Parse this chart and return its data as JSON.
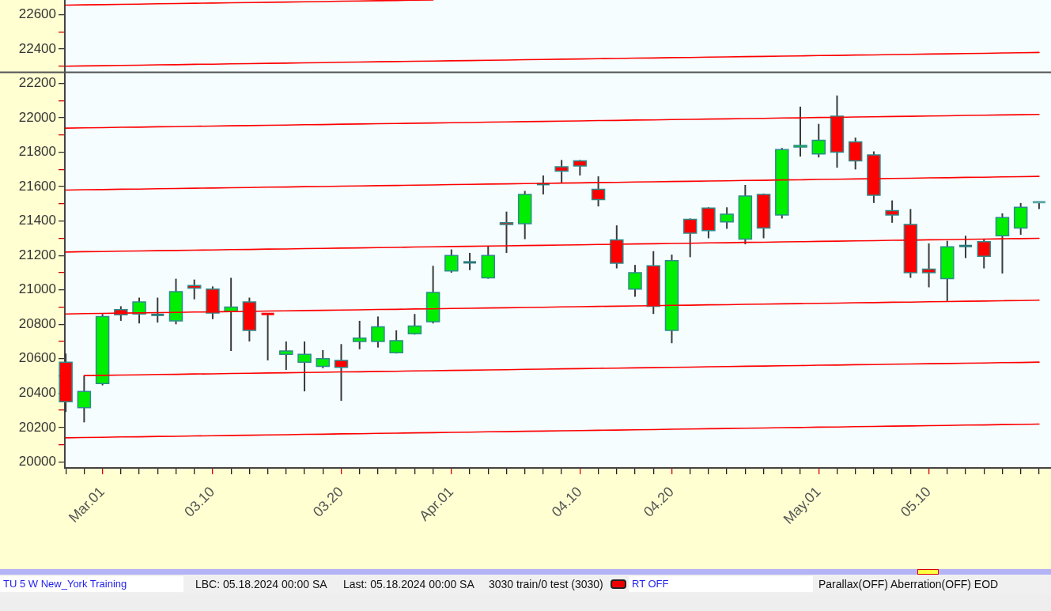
{
  "chart_data": {
    "type": "candlestick",
    "categories": [
      null,
      null,
      "Mar.01",
      null,
      null,
      null,
      null,
      null,
      "03.10",
      null,
      null,
      null,
      null,
      null,
      null,
      "03.20",
      null,
      null,
      null,
      null,
      null,
      "Apr.01",
      null,
      null,
      null,
      null,
      null,
      null,
      "04.10",
      null,
      null,
      null,
      null,
      "04.20",
      null,
      null,
      null,
      null,
      null,
      null,
      null,
      "May.01",
      null,
      null,
      null,
      null,
      null,
      "05.10",
      null,
      null,
      null,
      null,
      null,
      null
    ],
    "ohlc": [
      [
        20580,
        20630,
        20290,
        20350
      ],
      [
        20315,
        20500,
        20230,
        20410
      ],
      [
        20455,
        20860,
        20445,
        20845
      ],
      [
        20885,
        20905,
        20820,
        20855
      ],
      [
        20860,
        20955,
        20805,
        20930
      ],
      [
        20855,
        20955,
        20810,
        20855
      ],
      [
        20820,
        21065,
        20800,
        20990
      ],
      [
        21025,
        21060,
        20945,
        21010
      ],
      [
        21005,
        21020,
        20830,
        20865
      ],
      [
        20875,
        21070,
        20645,
        20900
      ],
      [
        20930,
        20955,
        20700,
        20765
      ],
      [
        20860,
        20860,
        20590,
        20860
      ],
      [
        20625,
        20700,
        20535,
        20645
      ],
      [
        20580,
        20700,
        20410,
        20625
      ],
      [
        20555,
        20650,
        20545,
        20600
      ],
      [
        20590,
        20685,
        20355,
        20550
      ],
      [
        20700,
        20820,
        20655,
        20720
      ],
      [
        20700,
        20845,
        20665,
        20785
      ],
      [
        20635,
        20765,
        20630,
        20705
      ],
      [
        20745,
        20860,
        20740,
        20790
      ],
      [
        20815,
        21140,
        20805,
        20985
      ],
      [
        21110,
        21235,
        21100,
        21200
      ],
      [
        21160,
        21215,
        21115,
        21160
      ],
      [
        21070,
        21255,
        21065,
        21200
      ],
      [
        21390,
        21455,
        21215,
        21380
      ],
      [
        21385,
        21575,
        21295,
        21555
      ],
      [
        21615,
        21665,
        21555,
        21615
      ],
      [
        21715,
        21755,
        21620,
        21690
      ],
      [
        21750,
        21755,
        21665,
        21720
      ],
      [
        21585,
        21660,
        21485,
        21525
      ],
      [
        21290,
        21375,
        21125,
        21155
      ],
      [
        21005,
        21145,
        20960,
        21100
      ],
      [
        21140,
        21225,
        20860,
        20905
      ],
      [
        20765,
        21205,
        20690,
        21170
      ],
      [
        21410,
        21415,
        21190,
        21330
      ],
      [
        21475,
        21480,
        21300,
        21345
      ],
      [
        21395,
        21480,
        21355,
        21440
      ],
      [
        21295,
        21610,
        21265,
        21545
      ],
      [
        21555,
        21560,
        21300,
        21360
      ],
      [
        21435,
        21825,
        21415,
        21815
      ],
      [
        21830,
        22065,
        21775,
        21840
      ],
      [
        21790,
        21965,
        21770,
        21870
      ],
      [
        22010,
        22130,
        21710,
        21800
      ],
      [
        21860,
        21885,
        21700,
        21750
      ],
      [
        21785,
        21805,
        21505,
        21550
      ],
      [
        21460,
        21520,
        21390,
        21435
      ],
      [
        21380,
        21470,
        21070,
        21100
      ],
      [
        21120,
        21270,
        21015,
        21100
      ],
      [
        21065,
        21285,
        20935,
        21250
      ],
      [
        21255,
        21315,
        21185,
        21255
      ],
      [
        21280,
        21295,
        21125,
        21195
      ],
      [
        21315,
        21445,
        21095,
        21420
      ],
      [
        21360,
        21505,
        21320,
        21480
      ],
      [
        21510,
        21510,
        21470,
        21510
      ]
    ],
    "colors": [
      "#ff0000",
      "#00ee00",
      "#00ee00",
      "#ff0000",
      "#00ee00",
      "#2a7a7a",
      "#00ee00",
      "#ff0000",
      "#ff0000",
      "#00ee00",
      "#ff0000",
      "#ff0000",
      "#00ee00",
      "#00ee00",
      "#00ee00",
      "#ff0000",
      "#00ee00",
      "#00ee00",
      "#00ee00",
      "#00ee00",
      "#00ee00",
      "#00ee00",
      "#2a7a7a",
      "#00ee00",
      "#ff0000",
      "#00ee00",
      "#2a7a7a",
      "#ff0000",
      "#ff0000",
      "#ff0000",
      "#ff0000",
      "#00ee00",
      "#ff0000",
      "#00ee00",
      "#ff0000",
      "#ff0000",
      "#00ee00",
      "#00ee00",
      "#ff0000",
      "#00ee00",
      "#00ee00",
      "#00ee00",
      "#ff0000",
      "#ff0000",
      "#ff0000",
      "#ff0000",
      "#ff0000",
      "#ff0000",
      "#00ee00",
      "#2a7a7a",
      "#ff0000",
      "#00ee00",
      "#00ee00",
      "#5fa8a8"
    ],
    "series": [
      {
        "type": "line",
        "color": "#ff0000",
        "values": [
          22655,
          22657,
          22658,
          22660,
          22661,
          22663,
          22664,
          22666,
          22667,
          22669,
          22670,
          22672,
          22673,
          22675,
          22676,
          22678,
          22679,
          22681,
          22682,
          22684,
          22685,
          null,
          null,
          null,
          null,
          null,
          null,
          null,
          null,
          null,
          null,
          null,
          null,
          null,
          null,
          null,
          null,
          null,
          null,
          null,
          null,
          null,
          null,
          null,
          null,
          null,
          null,
          null,
          null,
          null,
          null,
          null,
          null,
          null
        ]
      },
      {
        "type": "line",
        "color": "#ff0000",
        "values": [
          22300,
          22302,
          22303,
          22305,
          22306,
          22308,
          22309,
          22311,
          22312,
          22314,
          22315,
          22317,
          22318,
          22320,
          22321,
          22323,
          22324,
          22326,
          22327,
          22329,
          22330,
          22332,
          22333,
          22335,
          22336,
          22338,
          22339,
          22341,
          22342,
          22344,
          22345,
          22347,
          22348,
          22350,
          22351,
          22353,
          22354,
          22356,
          22357,
          22359,
          22360,
          22362,
          22363,
          22365,
          22366,
          22368,
          22369,
          22371,
          22372,
          22374,
          22375,
          22377,
          22378,
          22380
        ]
      },
      {
        "type": "line",
        "color": "#ff0000",
        "values": [
          21940,
          21942,
          21943,
          21945,
          21946,
          21948,
          21949,
          21951,
          21952,
          21954,
          21955,
          21957,
          21958,
          21960,
          21961,
          21963,
          21964,
          21966,
          21967,
          21969,
          21970,
          21972,
          21973,
          21975,
          21976,
          21978,
          21979,
          21981,
          21982,
          21984,
          21985,
          21987,
          21988,
          21990,
          21991,
          21993,
          21994,
          21996,
          21997,
          21999,
          22000,
          22002,
          22003,
          22005,
          22006,
          22008,
          22009,
          22011,
          22012,
          22014,
          22015,
          22017,
          22018,
          22020
        ]
      },
      {
        "type": "line",
        "color": "#ff0000",
        "values": [
          21580,
          21582,
          21583,
          21585,
          21586,
          21588,
          21589,
          21591,
          21592,
          21594,
          21595,
          21597,
          21598,
          21600,
          21601,
          21603,
          21604,
          21606,
          21607,
          21609,
          21610,
          21612,
          21613,
          21615,
          21616,
          21618,
          21619,
          21621,
          21622,
          21624,
          21625,
          21627,
          21628,
          21630,
          21631,
          21633,
          21634,
          21636,
          21637,
          21639,
          21640,
          21642,
          21643,
          21645,
          21646,
          21648,
          21649,
          21651,
          21652,
          21654,
          21655,
          21657,
          21658,
          21660
        ]
      },
      {
        "type": "line",
        "color": "#ff0000",
        "values": [
          21220,
          21222,
          21223,
          21225,
          21226,
          21228,
          21229,
          21231,
          21232,
          21234,
          21235,
          21237,
          21238,
          21240,
          21241,
          21243,
          21244,
          21246,
          21247,
          21249,
          21250,
          21252,
          21253,
          21255,
          21256,
          21258,
          21259,
          21261,
          21262,
          21264,
          21265,
          21267,
          21268,
          21270,
          21271,
          21273,
          21274,
          21276,
          21277,
          21279,
          21280,
          21282,
          21283,
          21285,
          21286,
          21288,
          21289,
          21291,
          21292,
          21294,
          21295,
          21297,
          21298,
          21300
        ]
      },
      {
        "type": "line",
        "color": "#ff0000",
        "values": [
          20860,
          20862,
          20863,
          20865,
          20866,
          20868,
          20869,
          20871,
          20872,
          20874,
          20875,
          20877,
          20878,
          20880,
          20881,
          20883,
          20884,
          20886,
          20887,
          20889,
          20890,
          20892,
          20893,
          20895,
          20896,
          20898,
          20899,
          20901,
          20902,
          20904,
          20905,
          20907,
          20908,
          20910,
          20911,
          20913,
          20914,
          20916,
          20917,
          20919,
          20920,
          20922,
          20923,
          20925,
          20926,
          20928,
          20929,
          20931,
          20932,
          20934,
          20935,
          20937,
          20938,
          20940
        ]
      },
      {
        "type": "line",
        "color": "#ff0000",
        "values": [
          null,
          20502,
          20503,
          20505,
          20506,
          20508,
          20509,
          20511,
          20512,
          20514,
          20515,
          20517,
          20518,
          20520,
          20521,
          20523,
          20524,
          20526,
          20527,
          20529,
          20530,
          20532,
          20533,
          20535,
          20536,
          20538,
          20539,
          20541,
          20542,
          20544,
          20545,
          20547,
          20548,
          20550,
          20551,
          20553,
          20554,
          20556,
          20557,
          20559,
          20560,
          20562,
          20563,
          20565,
          20566,
          20568,
          20569,
          20571,
          20572,
          20574,
          20575,
          20577,
          20578,
          20580
        ]
      },
      {
        "type": "line",
        "color": "#ff0000",
        "values": [
          20140,
          20142,
          20143,
          20145,
          20146,
          20148,
          20149,
          20151,
          20152,
          20154,
          20155,
          20157,
          20158,
          20160,
          20161,
          20163,
          20164,
          20166,
          20167,
          20169,
          20170,
          20172,
          20173,
          20175,
          20176,
          20178,
          20179,
          20181,
          20182,
          20184,
          20185,
          20187,
          20188,
          20190,
          20191,
          20193,
          20194,
          20196,
          20197,
          20199,
          20200,
          20202,
          20203,
          20205,
          20206,
          20208,
          20209,
          20211,
          20212,
          20214,
          20215,
          20217,
          20218,
          20220
        ]
      }
    ],
    "ylim": [
      19965,
      22685
    ],
    "yticks": [
      20000,
      {
        "value": 20100,
        "label": null
      },
      20200,
      {
        "value": 20300,
        "label": null
      },
      20400,
      {
        "value": 20500,
        "label": null
      },
      20600,
      {
        "value": 20700,
        "label": null
      },
      20800,
      {
        "value": 20900,
        "label": null
      },
      21000,
      {
        "value": 21100,
        "label": null
      },
      21200,
      {
        "value": 21300,
        "label": null
      },
      21400,
      {
        "value": 21500,
        "label": null
      },
      21600,
      {
        "value": 21700,
        "label": null
      },
      21800,
      {
        "value": 21900,
        "label": null
      },
      22000,
      {
        "value": 22100,
        "label": null
      },
      22200,
      {
        "value": 22300,
        "label": null
      },
      22400,
      {
        "value": 22500,
        "label": null
      },
      22600
    ],
    "ref_lines": [
      {
        "axis": "y",
        "value": 22265,
        "color": "#555555"
      }
    ],
    "annotations": [
      "TU 5 W New_York Training",
      "LBC: 05.18.2024 00:00 SA",
      "Last: 05.18.2024 00:00 SA",
      "3030 train/0 test (3030)",
      "RT OFF",
      "Parallax(OFF) Aberration(OFF) EOD"
    ]
  }
}
